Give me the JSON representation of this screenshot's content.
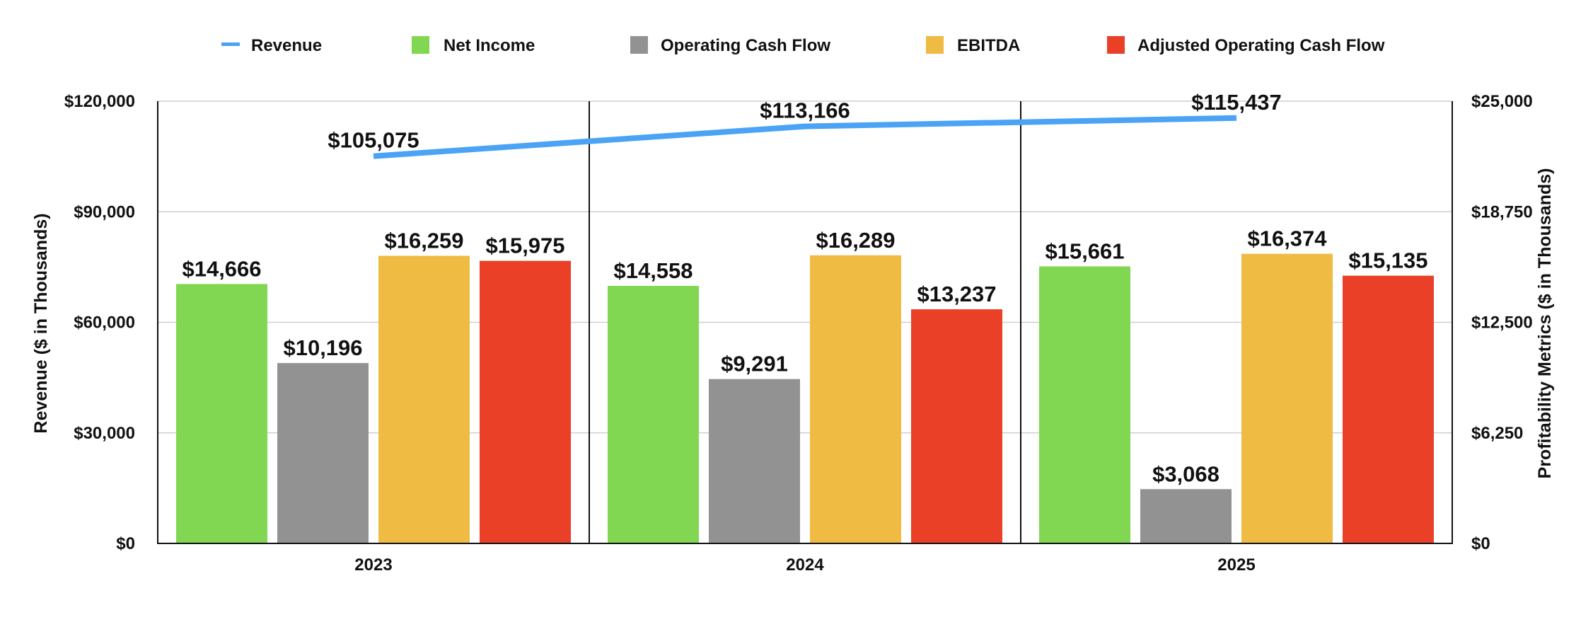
{
  "chart_data": {
    "type": "bar",
    "categories": [
      "2023",
      "2024",
      "2025"
    ],
    "series": [
      {
        "name": "Net Income",
        "axis": "right",
        "color": "#82d752",
        "values": [
          14666,
          14558,
          15661
        ],
        "labels": [
          "$14,666",
          "$14,558",
          "$15,661"
        ]
      },
      {
        "name": "Operating Cash Flow",
        "axis": "right",
        "color": "#929292",
        "values": [
          10196,
          9291,
          3068
        ],
        "labels": [
          "$10,196",
          "$9,291",
          "$3,068"
        ]
      },
      {
        "name": "EBITDA",
        "axis": "right",
        "color": "#efbb42",
        "values": [
          16259,
          16289,
          16374
        ],
        "labels": [
          "$16,259",
          "$16,289",
          "$16,374"
        ]
      },
      {
        "name": "Adjusted Operating Cash Flow",
        "axis": "right",
        "color": "#ea4027",
        "values": [
          15975,
          13237,
          15135
        ],
        "labels": [
          "$15,975",
          "$13,237",
          "$15,135"
        ]
      }
    ],
    "line_series": {
      "name": "Revenue",
      "type": "line",
      "axis": "left",
      "color": "#4aa3f5",
      "values": [
        105075,
        113166,
        115437
      ],
      "labels": [
        "$105,075",
        "$113,166",
        "$115,437"
      ]
    },
    "legend_order": [
      "Revenue",
      "Net Income",
      "Operating Cash Flow",
      "EBITDA",
      "Adjusted Operating Cash Flow"
    ],
    "legend_placement": "top",
    "ylabel": "Revenue ($ in Thousands)",
    "ylim": [
      0,
      120000
    ],
    "yticks": [
      "$0",
      "$30,000",
      "$60,000",
      "$90,000",
      "$120,000"
    ],
    "y2label": "Profitability Metrics ($ in Thousands)",
    "y2lim": [
      0,
      25000
    ],
    "y2ticks": [
      "$0",
      "$6,250",
      "$12,500",
      "$18,750",
      "$25,000"
    ],
    "grid": true
  }
}
